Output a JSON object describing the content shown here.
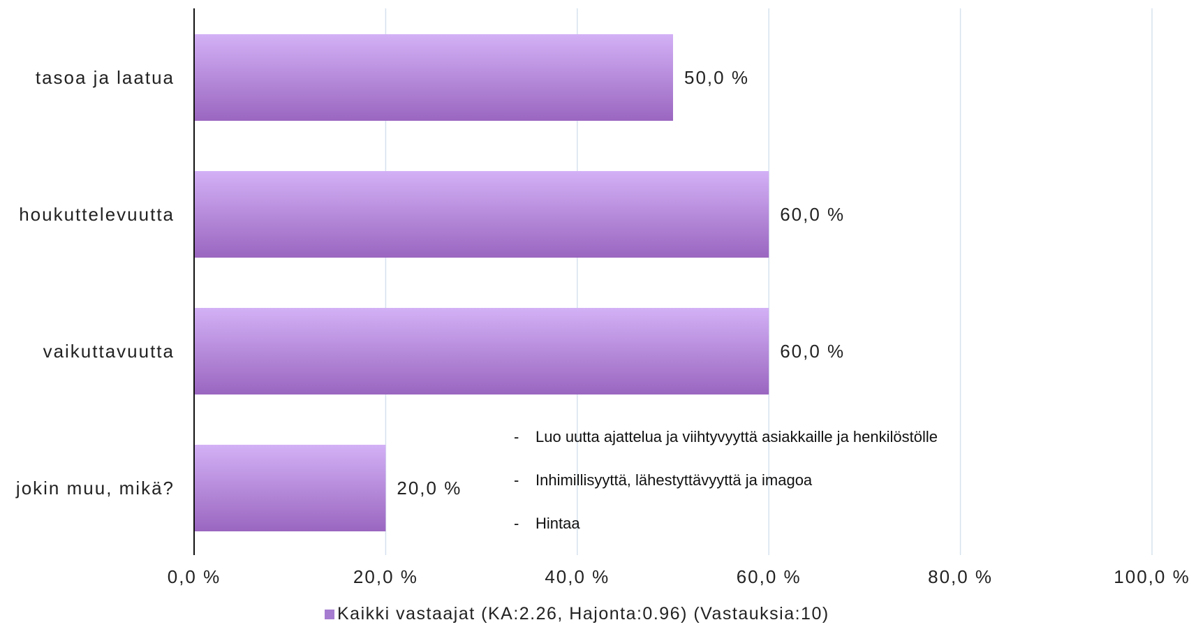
{
  "chart_data": {
    "type": "bar",
    "orientation": "horizontal",
    "categories": [
      "tasoa ja laatua",
      "houkuttelevuutta",
      "vaikuttavuutta",
      "jokin muu, mikä?"
    ],
    "series": [
      {
        "name": "Kaikki vastaajat (KA:2.26, Hajonta:0.96) (Vastauksia:10)",
        "values": [
          50,
          60,
          60,
          20
        ],
        "value_labels": [
          "50,0 %",
          "60,0 %",
          "60,0 %",
          "20,0 %"
        ],
        "color": "#a57cd0"
      }
    ],
    "xlim": [
      0,
      100
    ],
    "x_ticks": [
      0,
      20,
      40,
      60,
      80,
      100
    ],
    "x_tick_labels": [
      "0,0 %",
      "20,0 %",
      "40,0 %",
      "60,0 %",
      "80,0 %",
      "100,0 %"
    ],
    "grid": true,
    "legend_position": "bottom",
    "annotations": [
      "Luo uutta ajattelua ja viihtyvyyttä asiakkaille ja henkilöstölle",
      "Inhimillisyyttä, lähestyttävyyttä ja imagoa",
      "Hintaa"
    ],
    "annotation_bullet": "-",
    "colors": {
      "bar_top": "#d3b1f6",
      "bar_bottom": "#9a66c0",
      "grid": "#d6e2ee",
      "axis": "#111111"
    }
  }
}
